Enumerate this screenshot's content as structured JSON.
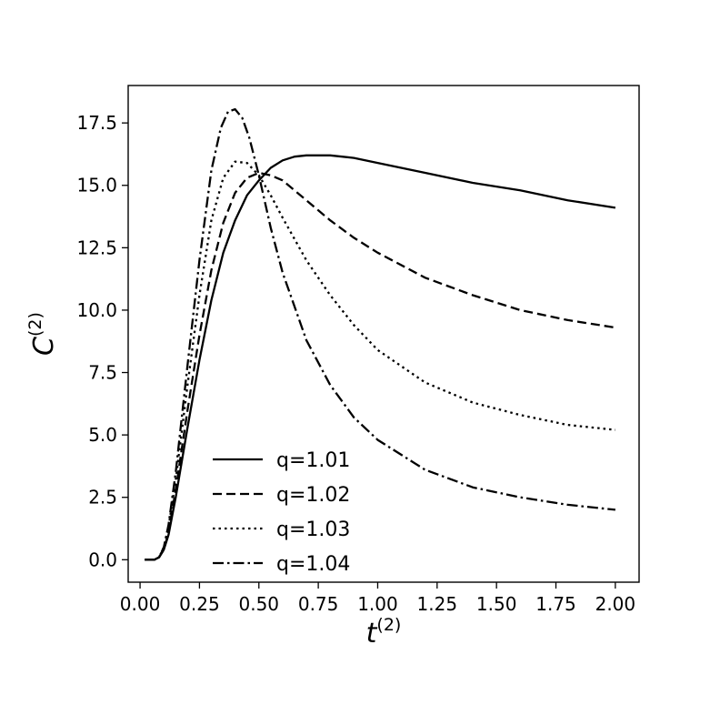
{
  "chart_data": {
    "type": "line",
    "xlabel": "t",
    "xlabel_sup": "(2)",
    "ylabel": "C",
    "ylabel_sup": "(2)",
    "xlim": [
      -0.05,
      2.1
    ],
    "ylim": [
      -0.9,
      19.0
    ],
    "x_ticks": [
      0.0,
      0.25,
      0.5,
      0.75,
      1.0,
      1.25,
      1.5,
      1.75,
      2.0
    ],
    "x_tick_labels": [
      "0.00",
      "0.25",
      "0.50",
      "0.75",
      "1.00",
      "1.25",
      "1.50",
      "1.75",
      "2.00"
    ],
    "y_ticks": [
      0.0,
      2.5,
      5.0,
      7.5,
      10.0,
      12.5,
      15.0,
      17.5
    ],
    "y_tick_labels": [
      "0.0",
      "2.5",
      "5.0",
      "7.5",
      "10.0",
      "12.5",
      "15.0",
      "17.5"
    ],
    "grid": false,
    "legend_position": "lower-left",
    "line_color": "#000000",
    "series": [
      {
        "name": "q=1.01",
        "dash": "solid",
        "x": [
          0.02,
          0.06,
          0.08,
          0.1,
          0.12,
          0.15,
          0.2,
          0.25,
          0.3,
          0.35,
          0.4,
          0.45,
          0.5,
          0.55,
          0.6,
          0.65,
          0.7,
          0.75,
          0.8,
          0.9,
          1.0,
          1.2,
          1.4,
          1.6,
          1.8,
          2.0
        ],
        "y": [
          0.0,
          0.0,
          0.1,
          0.4,
          1.0,
          2.5,
          5.3,
          8.0,
          10.4,
          12.3,
          13.6,
          14.6,
          15.2,
          15.7,
          16.0,
          16.15,
          16.2,
          16.2,
          16.2,
          16.1,
          15.9,
          15.5,
          15.1,
          14.8,
          14.4,
          14.1
        ]
      },
      {
        "name": "q=1.02",
        "dash": "dashed",
        "x": [
          0.02,
          0.06,
          0.08,
          0.1,
          0.12,
          0.15,
          0.2,
          0.25,
          0.3,
          0.35,
          0.4,
          0.45,
          0.5,
          0.55,
          0.6,
          0.7,
          0.8,
          0.9,
          1.0,
          1.2,
          1.4,
          1.6,
          1.8,
          2.0
        ],
        "y": [
          0.0,
          0.0,
          0.1,
          0.4,
          1.1,
          2.8,
          6.0,
          9.0,
          11.6,
          13.5,
          14.7,
          15.3,
          15.5,
          15.4,
          15.2,
          14.4,
          13.6,
          12.9,
          12.3,
          11.3,
          10.6,
          10.0,
          9.6,
          9.3
        ]
      },
      {
        "name": "q=1.03",
        "dash": "dotted",
        "x": [
          0.02,
          0.06,
          0.08,
          0.1,
          0.12,
          0.15,
          0.2,
          0.25,
          0.3,
          0.35,
          0.4,
          0.45,
          0.5,
          0.55,
          0.6,
          0.7,
          0.8,
          0.9,
          1.0,
          1.2,
          1.4,
          1.6,
          1.8,
          2.0
        ],
        "y": [
          0.0,
          0.0,
          0.1,
          0.5,
          1.3,
          3.2,
          7.0,
          10.6,
          13.6,
          15.3,
          15.95,
          15.9,
          15.4,
          14.6,
          13.7,
          12.0,
          10.6,
          9.4,
          8.4,
          7.1,
          6.3,
          5.8,
          5.4,
          5.2
        ]
      },
      {
        "name": "q=1.04",
        "dash": "dashdot",
        "x": [
          0.02,
          0.06,
          0.08,
          0.1,
          0.12,
          0.15,
          0.2,
          0.25,
          0.3,
          0.34,
          0.37,
          0.4,
          0.43,
          0.46,
          0.5,
          0.55,
          0.6,
          0.7,
          0.8,
          0.9,
          1.0,
          1.2,
          1.4,
          1.6,
          1.8,
          2.0
        ],
        "y": [
          0.0,
          0.0,
          0.1,
          0.5,
          1.4,
          3.5,
          7.8,
          12.0,
          15.6,
          17.3,
          17.95,
          18.05,
          17.7,
          16.9,
          15.4,
          13.3,
          11.5,
          8.8,
          7.0,
          5.7,
          4.8,
          3.6,
          2.9,
          2.5,
          2.2,
          2.0
        ]
      }
    ]
  }
}
